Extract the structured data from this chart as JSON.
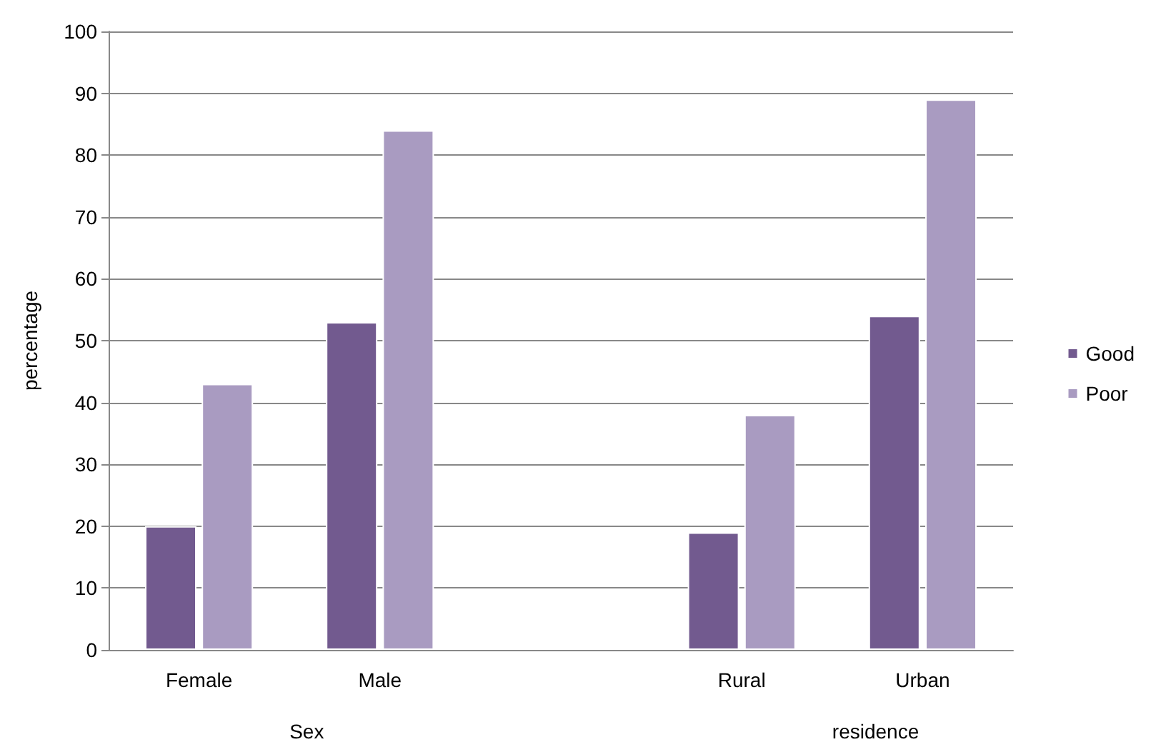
{
  "chart_data": {
    "type": "bar",
    "categories": [
      "Female",
      "Male",
      null,
      "Rural",
      "Urban"
    ],
    "series": [
      {
        "name": "Good",
        "color": "#725a8f",
        "values": [
          20,
          53,
          null,
          19,
          54
        ]
      },
      {
        "name": "Poor",
        "color": "#a99bc1",
        "values": [
          43,
          84,
          null,
          38,
          89
        ]
      }
    ],
    "ylabel": "percentage",
    "ylim": [
      0,
      100
    ],
    "yticks": [
      0,
      10,
      20,
      30,
      40,
      50,
      60,
      70,
      80,
      90,
      100
    ],
    "grid": "y",
    "legend": "right",
    "annotations": [
      "Sex",
      "residence"
    ]
  }
}
